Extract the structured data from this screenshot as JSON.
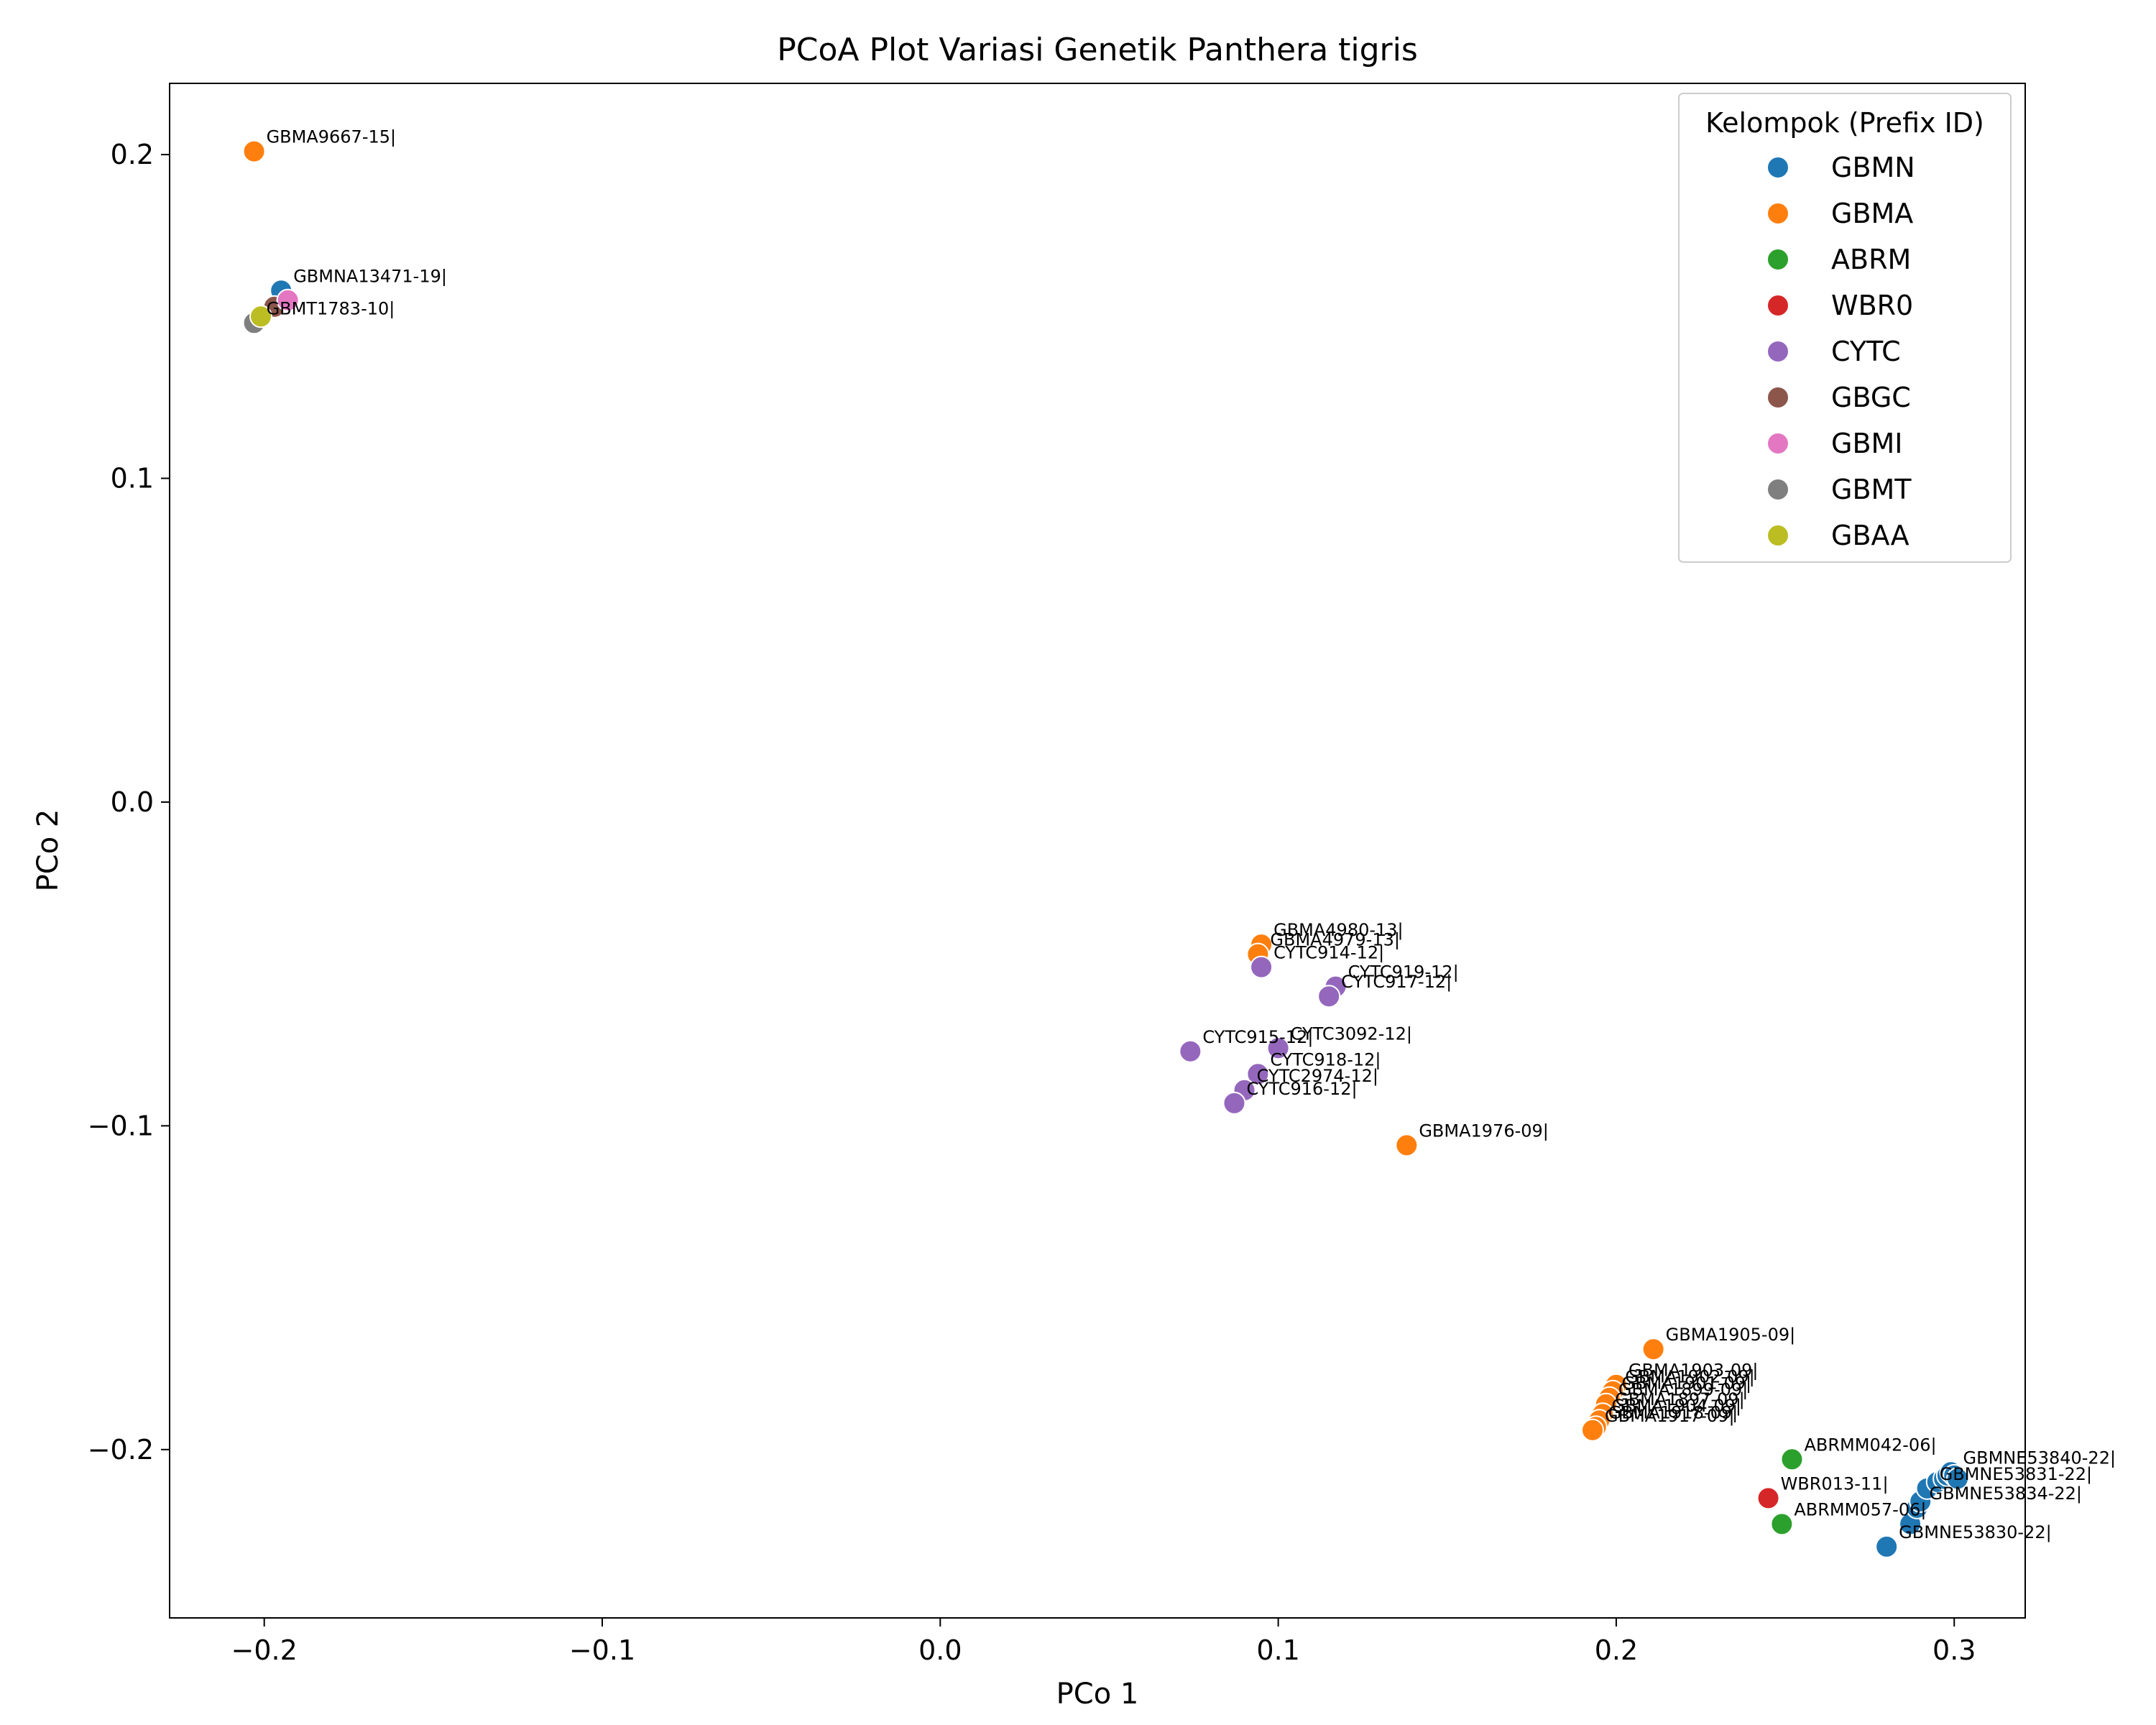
{
  "chart_data": {
    "type": "scatter",
    "title": "PCoA Plot Variasi Genetik Panthera tigris",
    "xlabel": "PCo 1",
    "ylabel": "PCo 2",
    "xlim": [
      -0.228,
      0.321
    ],
    "ylim": [
      -0.252,
      0.222
    ],
    "x_ticks": [
      -0.2,
      -0.1,
      0.0,
      0.1,
      0.2,
      0.3
    ],
    "x_tick_labels": [
      "−0.2",
      "−0.1",
      "0.0",
      "0.1",
      "0.2",
      "0.3"
    ],
    "y_ticks": [
      -0.2,
      -0.1,
      0.0,
      0.1,
      0.2
    ],
    "y_tick_labels": [
      "−0.2",
      "−0.1",
      "0.0",
      "0.1",
      "0.2"
    ],
    "grid": false,
    "legend": {
      "title": "Kelompok (Prefix ID)",
      "position": "top-right"
    },
    "series": [
      {
        "name": "GBMN",
        "color": "#1f77b4",
        "points": [
          {
            "x": -0.195,
            "y": 0.158,
            "label": "GBMNA13471-19|"
          },
          {
            "x": 0.28,
            "y": -0.23,
            "label": "GBMNE53830-22|"
          },
          {
            "x": 0.287,
            "y": -0.223,
            "label": ""
          },
          {
            "x": 0.289,
            "y": -0.218,
            "label": "GBMNE53834-22|"
          },
          {
            "x": 0.29,
            "y": -0.216,
            "label": ""
          },
          {
            "x": 0.292,
            "y": -0.212,
            "label": "GBMNE53831-22|"
          },
          {
            "x": 0.295,
            "y": -0.21,
            "label": ""
          },
          {
            "x": 0.297,
            "y": -0.209,
            "label": ""
          },
          {
            "x": 0.298,
            "y": -0.208,
            "label": ""
          },
          {
            "x": 0.299,
            "y": -0.207,
            "label": "GBMNE53840-22|"
          },
          {
            "x": 0.3,
            "y": -0.208,
            "label": ""
          },
          {
            "x": 0.301,
            "y": -0.209,
            "label": ""
          }
        ]
      },
      {
        "name": "GBMA",
        "color": "#ff7f0e",
        "points": [
          {
            "x": -0.203,
            "y": 0.201,
            "label": "GBMA9667-15|"
          },
          {
            "x": 0.095,
            "y": -0.044,
            "label": "GBMA4980-13|"
          },
          {
            "x": 0.094,
            "y": -0.047,
            "label": "GBMA4979-13|"
          },
          {
            "x": 0.138,
            "y": -0.106,
            "label": "GBMA1976-09|"
          },
          {
            "x": 0.211,
            "y": -0.169,
            "label": "GBMA1905-09|"
          },
          {
            "x": 0.2,
            "y": -0.18,
            "label": "GBMA1903-09|"
          },
          {
            "x": 0.199,
            "y": -0.182,
            "label": "GBMA1902-09|"
          },
          {
            "x": 0.198,
            "y": -0.184,
            "label": "GBMA1901-09|"
          },
          {
            "x": 0.197,
            "y": -0.186,
            "label": "GBMA1899-09|"
          },
          {
            "x": 0.196,
            "y": -0.189,
            "label": "GBMA1897-09|"
          },
          {
            "x": 0.195,
            "y": -0.191,
            "label": "GBMA1904-09|"
          },
          {
            "x": 0.194,
            "y": -0.193,
            "label": "GBMA1918-09|"
          },
          {
            "x": 0.193,
            "y": -0.194,
            "label": "GBMA1917-09|"
          }
        ]
      },
      {
        "name": "ABRM",
        "color": "#2ca02c",
        "points": [
          {
            "x": 0.252,
            "y": -0.203,
            "label": "ABRMM042-06|"
          },
          {
            "x": 0.249,
            "y": -0.223,
            "label": "ABRMM057-06|"
          }
        ]
      },
      {
        "name": "WBR0",
        "color": "#d62728",
        "points": [
          {
            "x": 0.245,
            "y": -0.215,
            "label": "WBR013-11|"
          }
        ]
      },
      {
        "name": "CYTC",
        "color": "#9467bd",
        "points": [
          {
            "x": 0.095,
            "y": -0.051,
            "label": "CYTC914-12|"
          },
          {
            "x": 0.117,
            "y": -0.057,
            "label": "CYTC919-12|"
          },
          {
            "x": 0.115,
            "y": -0.06,
            "label": "CYTC917-12|"
          },
          {
            "x": 0.074,
            "y": -0.077,
            "label": "CYTC915-12|"
          },
          {
            "x": 0.1,
            "y": -0.076,
            "label": "CYTC3092-12|"
          },
          {
            "x": 0.094,
            "y": -0.084,
            "label": "CYTC918-12|"
          },
          {
            "x": 0.09,
            "y": -0.089,
            "label": "CYTC2974-12|"
          },
          {
            "x": 0.087,
            "y": -0.093,
            "label": "CYTC916-12|"
          }
        ]
      },
      {
        "name": "GBGC",
        "color": "#8c564b",
        "points": [
          {
            "x": -0.197,
            "y": 0.153,
            "label": ""
          }
        ]
      },
      {
        "name": "GBMI",
        "color": "#e377c2",
        "points": [
          {
            "x": -0.193,
            "y": 0.155,
            "label": ""
          }
        ]
      },
      {
        "name": "GBMT",
        "color": "#7f7f7f",
        "points": [
          {
            "x": -0.203,
            "y": 0.148,
            "label": "GBMT1783-10|"
          }
        ]
      },
      {
        "name": "GBAA",
        "color": "#bcbd22",
        "points": [
          {
            "x": -0.201,
            "y": 0.15,
            "label": ""
          }
        ]
      }
    ]
  }
}
